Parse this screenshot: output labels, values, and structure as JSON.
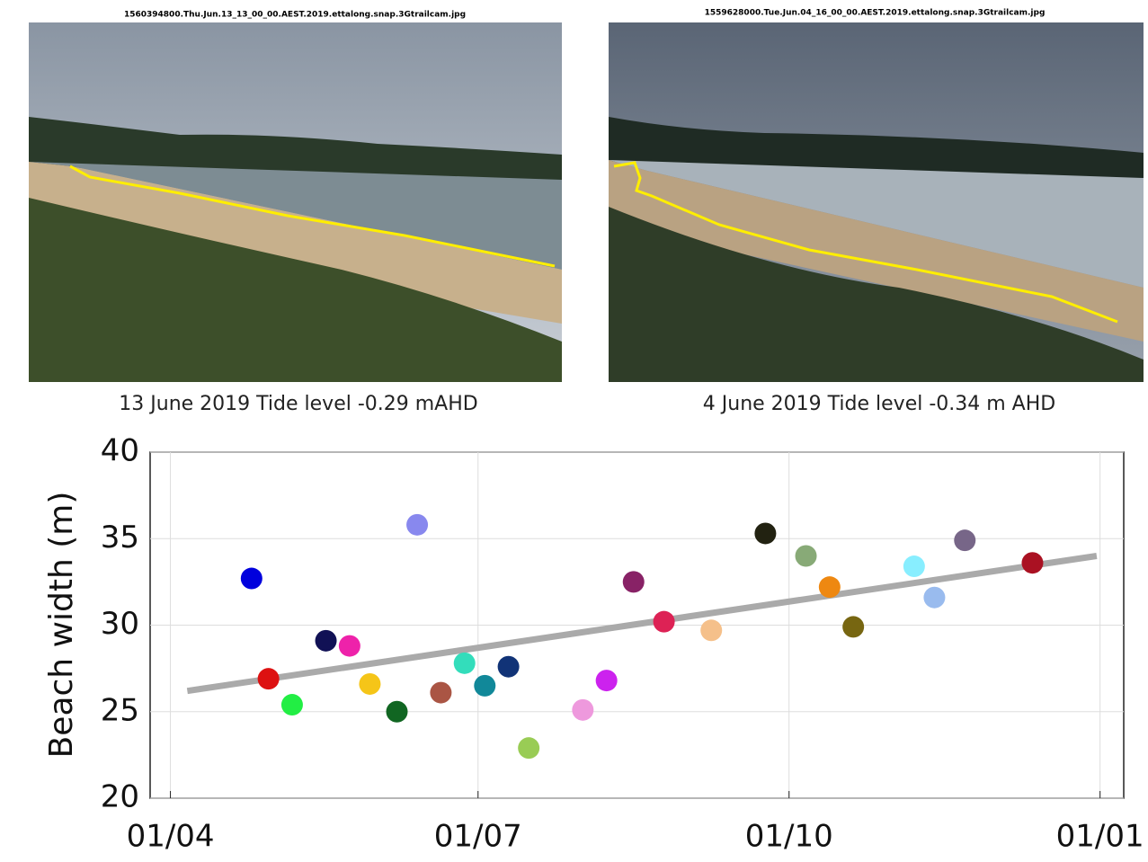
{
  "photos": [
    {
      "filename": "1560394800.Thu.Jun.13_13_00_00.AEST.2019.ettalong.snap.3Gtrailcam.jpg",
      "caption": "13 June 2019 Tide level -0.29 mAHD"
    },
    {
      "filename": "1559628000.Tue.Jun.04_16_00_00.AEST.2019.ettalong.snap.3Gtrailcam.jpg",
      "caption": "4 June 2019 Tide level -0.34 m AHD"
    }
  ],
  "chart_data": {
    "type": "scatter",
    "y_label": "Beach width (m)",
    "x": [
      24,
      29,
      36,
      46,
      53,
      59,
      67,
      73,
      80,
      87,
      93,
      100,
      106,
      122,
      129,
      137,
      146,
      160,
      176,
      188,
      195,
      202,
      220,
      226,
      235,
      255
    ],
    "values": [
      32.7,
      26.9,
      25.4,
      29.1,
      28.8,
      26.6,
      25.0,
      35.8,
      26.1,
      27.8,
      26.5,
      27.6,
      22.9,
      25.1,
      26.8,
      32.5,
      30.2,
      29.7,
      35.3,
      34.0,
      32.2,
      29.9,
      33.4,
      31.6,
      34.9,
      33.6
    ],
    "colors": [
      "#0000dd",
      "#dd1111",
      "#22ee44",
      "#111155",
      "#ee22aa",
      "#f5c518",
      "#116622",
      "#8888ee",
      "#aa5544",
      "#33ddbb",
      "#118899",
      "#113377",
      "#99cc55",
      "#ee99dd",
      "#cc22ee",
      "#882266",
      "#dd2255",
      "#f5c08a",
      "#222211",
      "#88aa77",
      "#ee8811",
      "#776611",
      "#88eeff",
      "#99bbee",
      "#776688",
      "#aa1122"
    ],
    "trend": {
      "x": [
        5,
        274
      ],
      "values": [
        26.2,
        34.0
      ],
      "color": "#aaaaaa"
    },
    "xlim": [
      -6,
      282
    ],
    "ylim": [
      20,
      40
    ],
    "xticks": [
      {
        "value": 0,
        "label": "01/04"
      },
      {
        "value": 91,
        "label": "01/07"
      },
      {
        "value": 183,
        "label": "01/10"
      },
      {
        "value": 275,
        "label": "01/01"
      }
    ],
    "yticks": [
      20,
      25,
      30,
      35,
      40
    ],
    "grid": true
  }
}
